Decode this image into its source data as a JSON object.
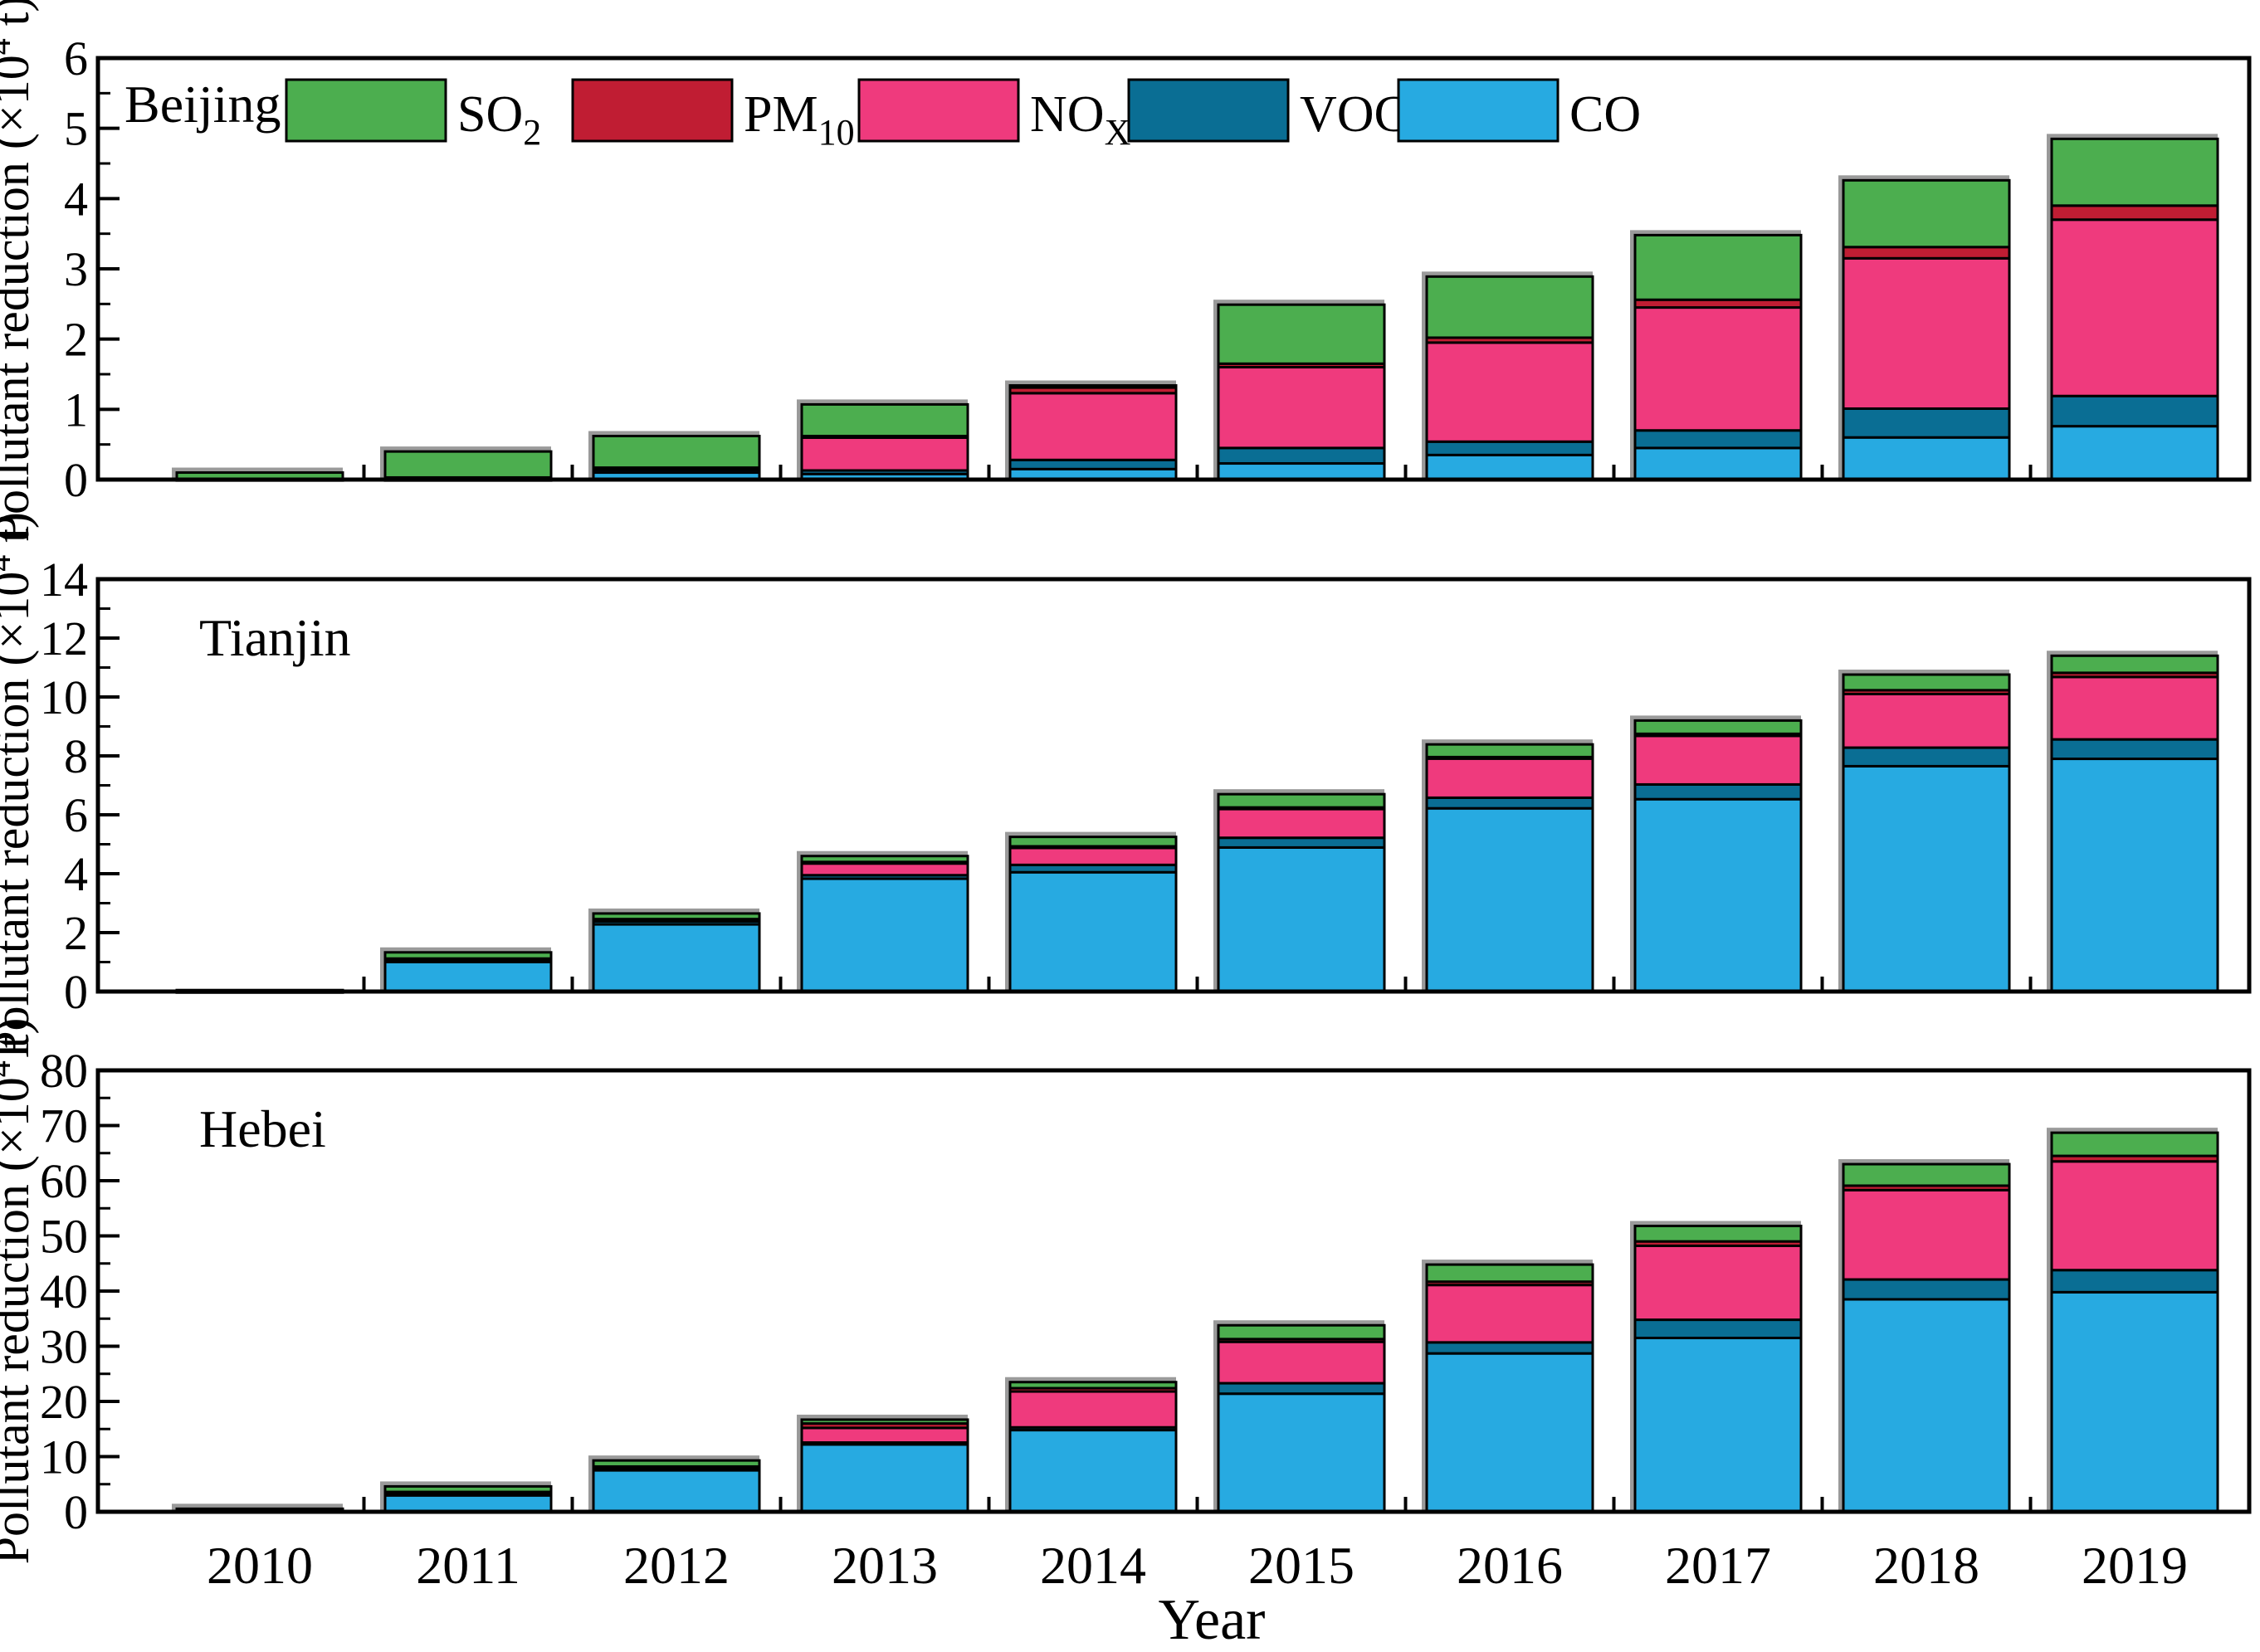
{
  "figure": {
    "x_label": "Year",
    "y_label_pre": "Pollutant reduction (×10",
    "y_label_sup": "4",
    "y_label_post": " t)"
  },
  "years": [
    "2010",
    "2011",
    "2012",
    "2013",
    "2014",
    "2015",
    "2016",
    "2017",
    "2018",
    "2019"
  ],
  "legend": {
    "items": [
      {
        "name": "SO2",
        "label_base": "SO",
        "label_sub": "2",
        "color": "#4CAE4F"
      },
      {
        "name": "PM10",
        "label_base": "PM",
        "label_sub": "10",
        "color": "#C01D33"
      },
      {
        "name": "NOx",
        "label_base": "NO",
        "label_sub": "X",
        "color": "#EF3A7D"
      },
      {
        "name": "VOCs",
        "label_base": "VOCs",
        "label_sub": "",
        "color": "#0A6E94"
      },
      {
        "name": "CO",
        "label_base": "CO",
        "label_sub": "",
        "color": "#27AAE1"
      }
    ]
  },
  "chart_data": [
    {
      "type": "bar",
      "stacked": true,
      "title": "Beijing",
      "categories": [
        "2010",
        "2011",
        "2012",
        "2013",
        "2014",
        "2015",
        "2016",
        "2017",
        "2018",
        "2019"
      ],
      "ylim": [
        0,
        6
      ],
      "yticks": [
        0,
        1,
        2,
        3,
        4,
        5,
        6
      ],
      "grid": false,
      "legend_position": "top-inside",
      "series": [
        {
          "name": "CO",
          "color": "#27AAE1",
          "values": [
            0.01,
            0.01,
            0.1,
            0.08,
            0.15,
            0.23,
            0.35,
            0.45,
            0.6,
            0.76
          ]
        },
        {
          "name": "VOCs",
          "color": "#0A6E94",
          "values": [
            0.0,
            0.01,
            0.05,
            0.05,
            0.13,
            0.22,
            0.19,
            0.25,
            0.41,
            0.43
          ]
        },
        {
          "name": "NOx",
          "color": "#EF3A7D",
          "values": [
            0.0,
            0.01,
            0.01,
            0.47,
            0.95,
            1.15,
            1.41,
            1.75,
            2.14,
            2.51
          ]
        },
        {
          "name": "PM10",
          "color": "#C01D33",
          "values": [
            0.0,
            0.0,
            0.01,
            0.02,
            0.08,
            0.05,
            0.07,
            0.11,
            0.16,
            0.2
          ]
        },
        {
          "name": "SO2",
          "color": "#4CAE4F",
          "values": [
            0.09,
            0.37,
            0.45,
            0.45,
            0.03,
            0.84,
            0.87,
            0.92,
            0.95,
            0.95
          ]
        }
      ]
    },
    {
      "type": "bar",
      "stacked": true,
      "title": "Tianjin",
      "categories": [
        "2010",
        "2011",
        "2012",
        "2013",
        "2014",
        "2015",
        "2016",
        "2017",
        "2018",
        "2019"
      ],
      "ylim": [
        0,
        14
      ],
      "yticks": [
        0,
        2,
        4,
        6,
        8,
        10,
        12,
        14
      ],
      "grid": false,
      "series": [
        {
          "name": "CO",
          "color": "#27AAE1",
          "values": [
            0.02,
            1.0,
            2.28,
            3.83,
            4.05,
            4.89,
            6.22,
            6.53,
            7.65,
            7.9
          ]
        },
        {
          "name": "VOCs",
          "color": "#0A6E94",
          "values": [
            0.01,
            0.06,
            0.1,
            0.12,
            0.25,
            0.33,
            0.36,
            0.5,
            0.63,
            0.66
          ]
        },
        {
          "name": "NOx",
          "color": "#EF3A7D",
          "values": [
            0.01,
            0.04,
            0.06,
            0.42,
            0.6,
            1.0,
            1.34,
            1.65,
            1.82,
            2.12
          ]
        },
        {
          "name": "PM10",
          "color": "#C01D33",
          "values": [
            0.0,
            0.02,
            0.02,
            0.03,
            0.03,
            0.03,
            0.04,
            0.07,
            0.13,
            0.14
          ]
        },
        {
          "name": "SO2",
          "color": "#4CAE4F",
          "values": [
            0.01,
            0.21,
            0.19,
            0.2,
            0.32,
            0.45,
            0.43,
            0.45,
            0.53,
            0.58
          ]
        }
      ]
    },
    {
      "type": "bar",
      "stacked": true,
      "title": "Hebei",
      "categories": [
        "2010",
        "2011",
        "2012",
        "2013",
        "2014",
        "2015",
        "2016",
        "2017",
        "2018",
        "2019"
      ],
      "ylim": [
        0,
        80
      ],
      "yticks": [
        0,
        10,
        20,
        30,
        40,
        50,
        60,
        70,
        80
      ],
      "grid": false,
      "series": [
        {
          "name": "CO",
          "color": "#27AAE1",
          "values": [
            0.3,
            3.1,
            7.6,
            12.2,
            14.8,
            21.4,
            28.7,
            31.5,
            38.5,
            39.8
          ]
        },
        {
          "name": "VOCs",
          "color": "#0A6E94",
          "values": [
            0.1,
            0.15,
            0.2,
            0.35,
            0.5,
            1.9,
            2.0,
            3.3,
            3.6,
            4.0
          ]
        },
        {
          "name": "NOx",
          "color": "#EF3A7D",
          "values": [
            0.05,
            0.2,
            0.25,
            2.65,
            6.5,
            7.5,
            10.4,
            13.4,
            16.2,
            19.7
          ]
        },
        {
          "name": "PM10",
          "color": "#C01D33",
          "values": [
            0.03,
            0.15,
            0.15,
            0.8,
            0.6,
            0.5,
            0.6,
            0.8,
            0.8,
            1.0
          ]
        },
        {
          "name": "SO2",
          "color": "#4CAE4F",
          "values": [
            0.07,
            1.0,
            1.1,
            0.7,
            1.1,
            2.5,
            3.1,
            2.8,
            3.9,
            4.2
          ]
        }
      ]
    }
  ]
}
